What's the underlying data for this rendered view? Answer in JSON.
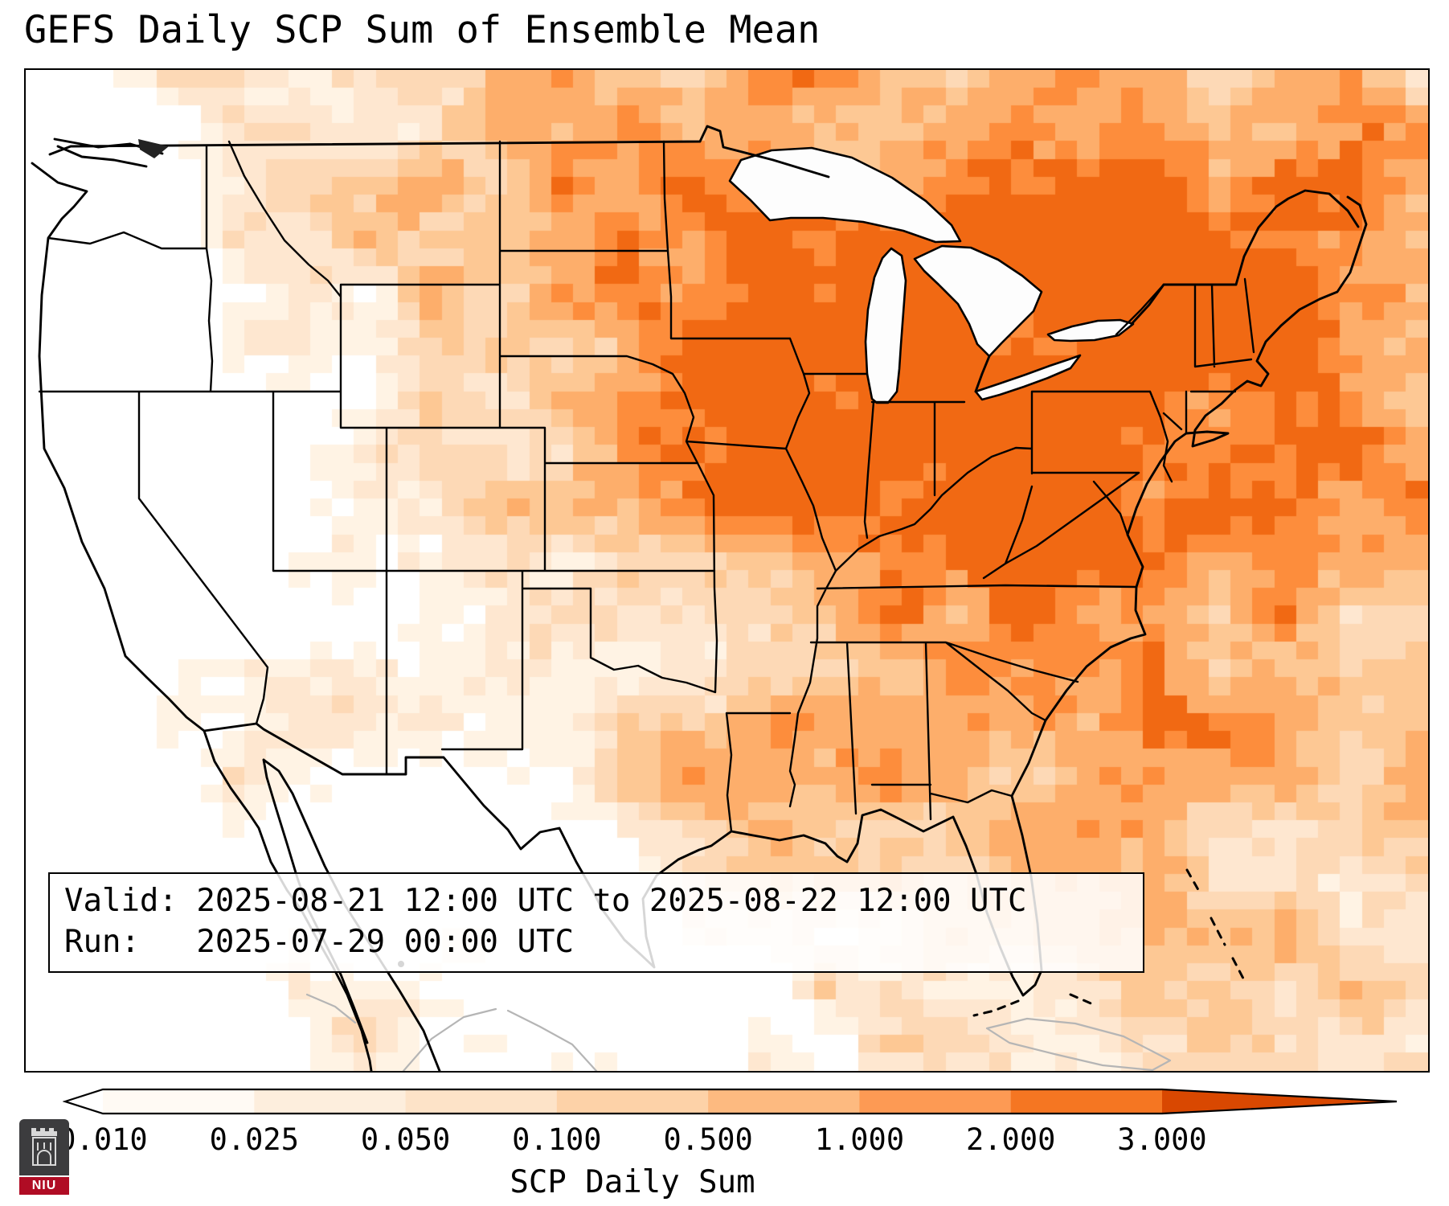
{
  "title": "GEFS Daily SCP Sum of Ensemble Mean",
  "info_box": {
    "valid_label": "Valid:",
    "valid_value": "2025-08-21 12:00 UTC to 2025-08-22 12:00 UTC",
    "run_label": "Run:",
    "run_value": "2025-07-29 00:00 UTC"
  },
  "colorbar": {
    "label": "SCP Daily Sum",
    "ticks": [
      "0.010",
      "0.025",
      "0.050",
      "0.100",
      "0.500",
      "1.000",
      "2.000",
      "3.000"
    ],
    "segment_colors": [
      "#fffaf4",
      "#fdeedd",
      "#fde3c8",
      "#fdd2a8",
      "#fdba80",
      "#fd9a54",
      "#f57622"
    ],
    "under_color": "#ffffff",
    "over_color": "#d94801",
    "outline_color": "#000000"
  },
  "heatmap": {
    "palette": [
      "#ffffff",
      "#fff3e4",
      "#fee7d0",
      "#fdd9b6",
      "#fdc894",
      "#fdae6b",
      "#fd8d3c",
      "#f16913"
    ]
  },
  "logo": {
    "text": "NIU",
    "shield_color": "#3c3c3e",
    "banner_color": "#b00c24"
  },
  "chart_data": {
    "type": "heatmap",
    "title": "GEFS Daily SCP Sum of Ensemble Mean",
    "region": "Continental United States map with gridded SCP values",
    "colorbar_label": "SCP Daily Sum",
    "colorbar_ticks": [
      0.01,
      0.025,
      0.05,
      0.1,
      0.5,
      1.0,
      2.0,
      3.0
    ],
    "colorbar_extends": "both",
    "valid_period": "2025-08-21 12:00 UTC to 2025-08-22 12:00 UTC",
    "model_run": "2025-07-29 00:00 UTC"
  }
}
